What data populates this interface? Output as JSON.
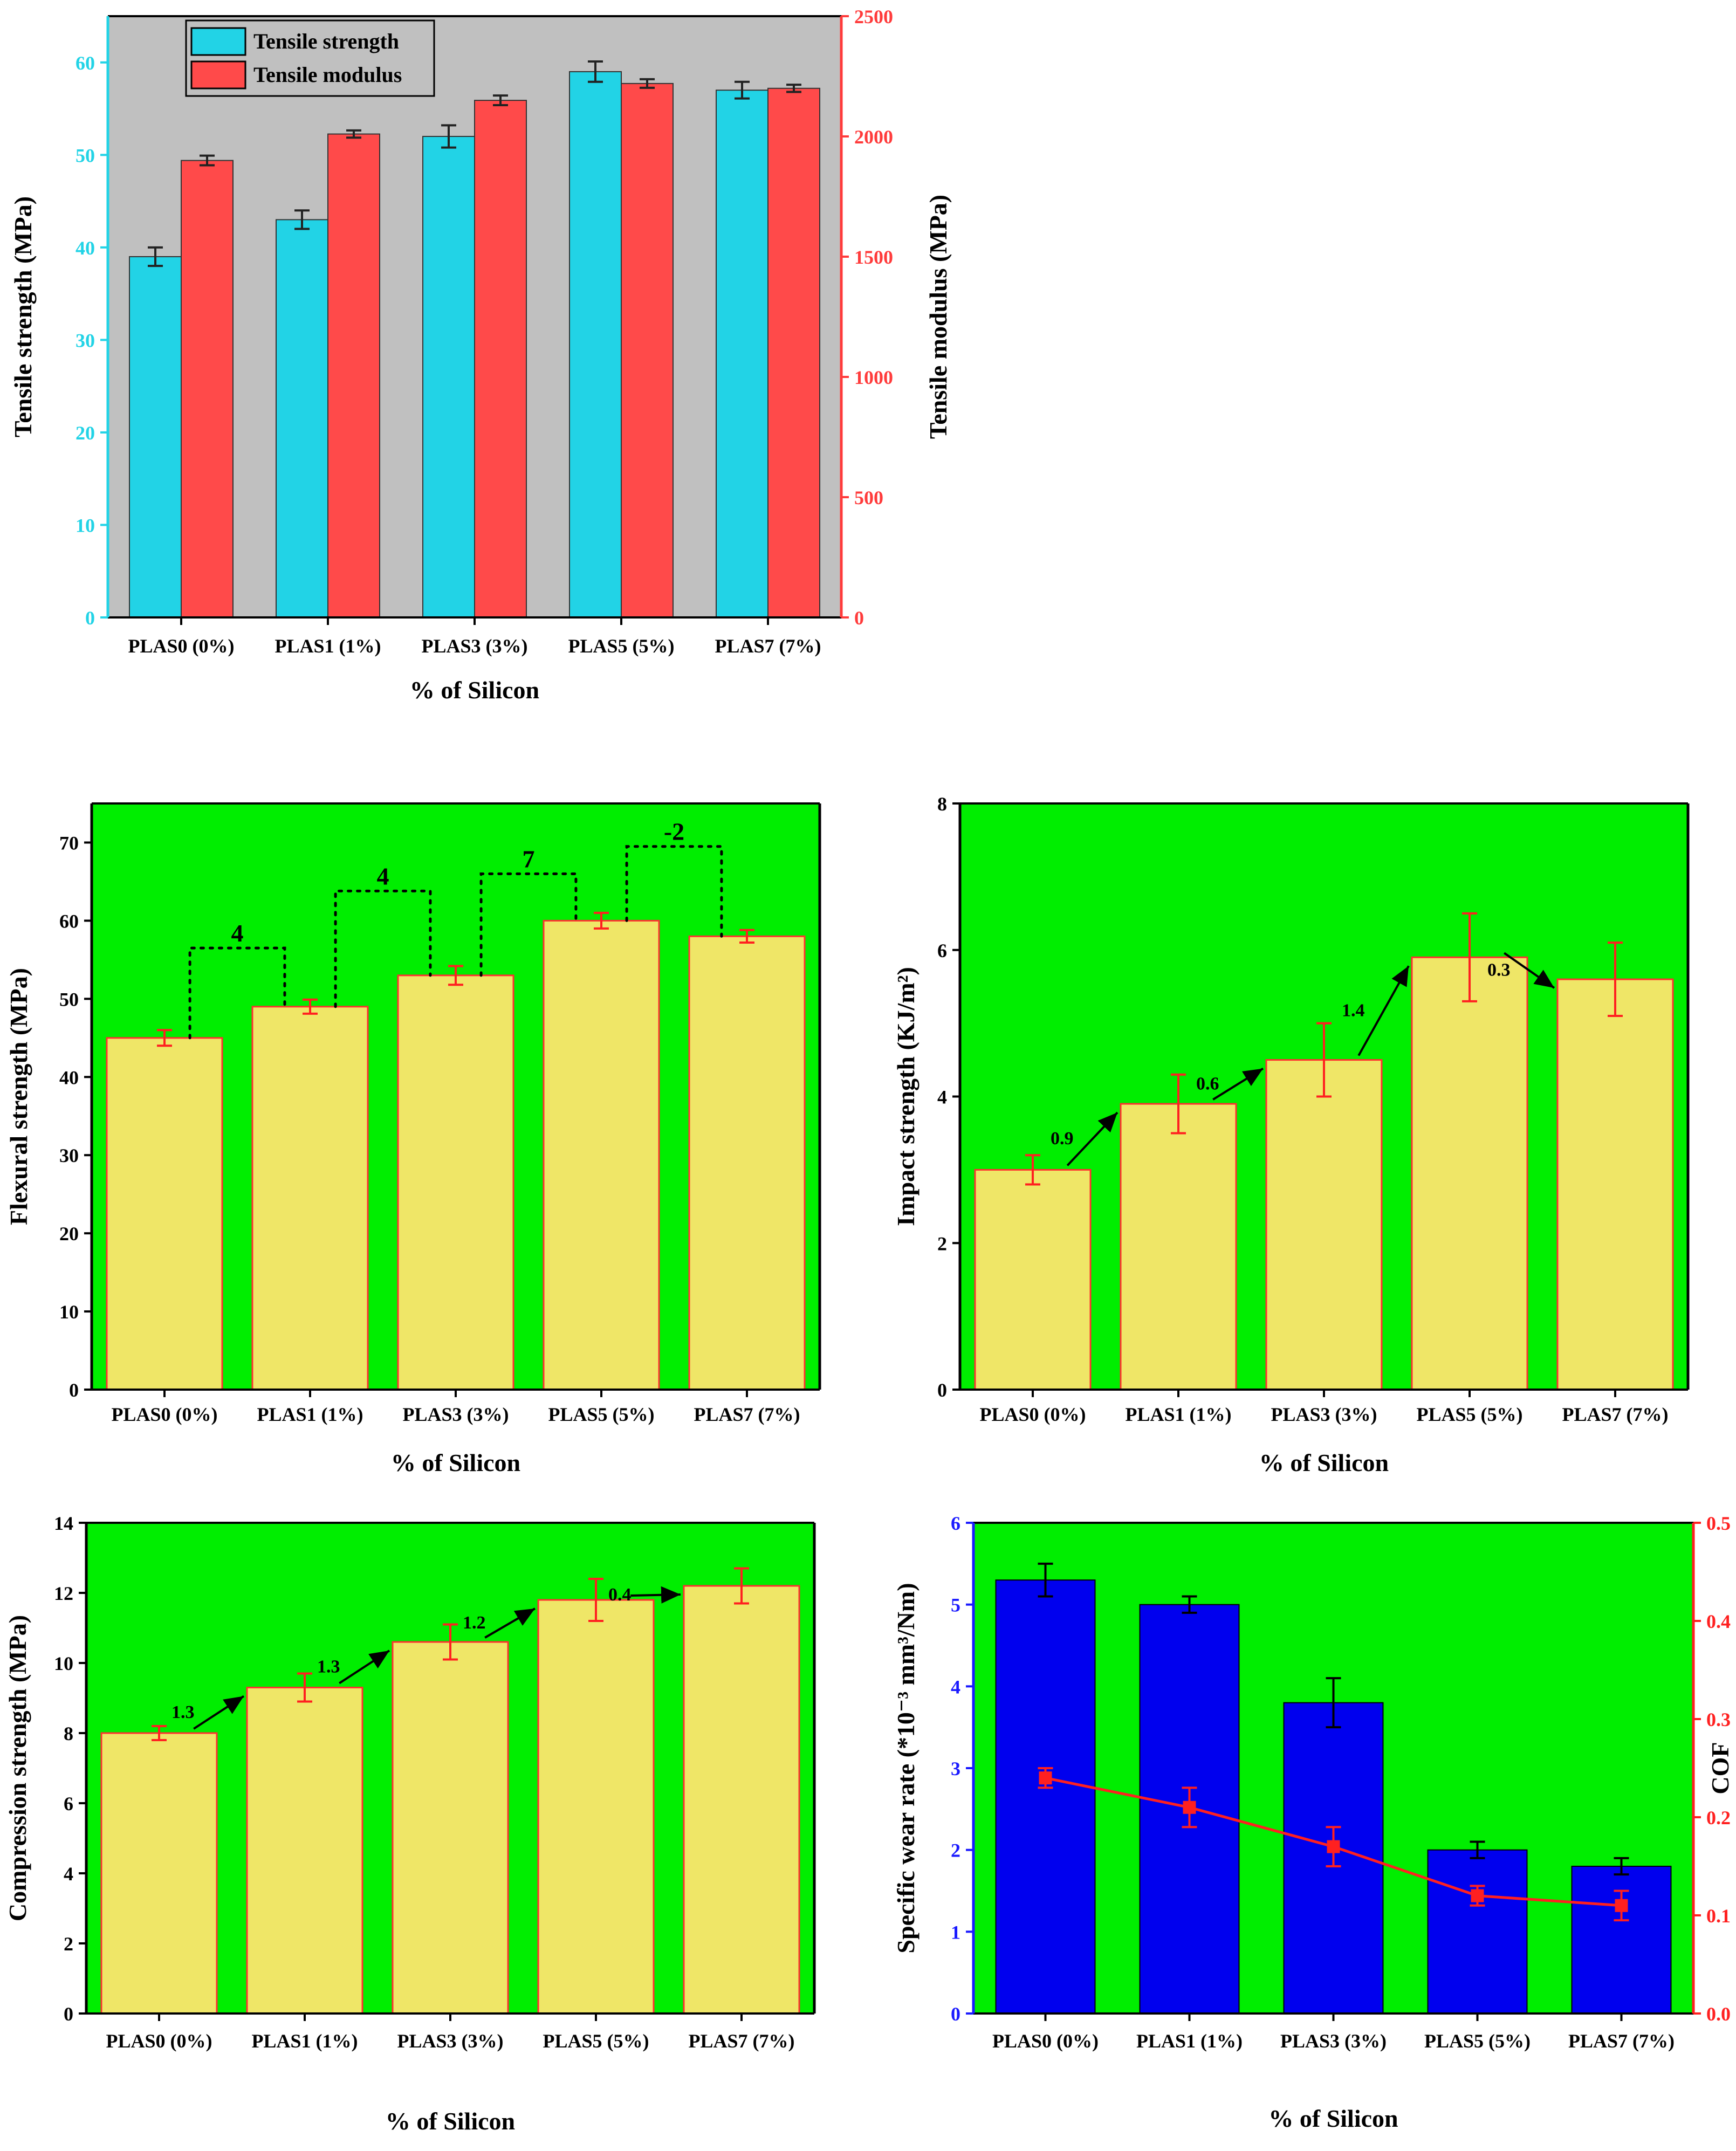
{
  "chart_data": [
    {
      "id": "tensile",
      "type": "bar",
      "categories": [
        "PLAS0 (0%)",
        "PLAS1 (1%)",
        "PLAS3 (3%)",
        "PLAS5 (5%)",
        "PLAS7 (7%)"
      ],
      "xlabel": "% of Silicon",
      "ylabel": "Tensile strength (MPa)",
      "ylabel_right": "Tensile modulus (MPa)",
      "ylim": [
        0,
        65
      ],
      "yticks": [
        0,
        10,
        20,
        30,
        40,
        50,
        60
      ],
      "ylim_right": [
        0,
        2500
      ],
      "yticks_right": [
        0,
        500,
        1000,
        1500,
        2000,
        2500
      ],
      "background": "#c0c0c0",
      "left_axis_color": "#22d3e6",
      "right_axis_color": "#ff3b3b",
      "legend_position": "top-left",
      "series": [
        {
          "name": "Tensile strength",
          "axis": "left",
          "color": "#22d3e6",
          "values": [
            39,
            43,
            52,
            59,
            57
          ],
          "errors": [
            1.0,
            1.0,
            1.2,
            1.1,
            0.9
          ]
        },
        {
          "name": "Tensile modulus",
          "axis": "right",
          "color": "#ff4a4a",
          "values": [
            1900,
            2010,
            2150,
            2220,
            2200
          ],
          "errors": [
            20,
            15,
            20,
            18,
            15
          ]
        }
      ]
    },
    {
      "id": "flexural",
      "type": "bar",
      "categories": [
        "PLAS0 (0%)",
        "PLAS1 (1%)",
        "PLAS3 (3%)",
        "PLAS5 (5%)",
        "PLAS7 (7%)"
      ],
      "xlabel": "% of Silicon",
      "ylabel": "Flexural strength (MPa)",
      "ylim": [
        0,
        75
      ],
      "yticks": [
        0,
        10,
        20,
        30,
        40,
        50,
        60,
        70
      ],
      "background": "#00ee00",
      "bar_color": "#efe667",
      "error_color": "#ff2020",
      "series": [
        {
          "name": "Flexural strength",
          "values": [
            45,
            49,
            53,
            60,
            58
          ],
          "errors": [
            1.0,
            0.9,
            1.2,
            1.0,
            0.8
          ]
        }
      ],
      "annotations": [
        {
          "label": "4",
          "from": 0,
          "to": 1,
          "level": 56.5
        },
        {
          "label": "4",
          "from": 1,
          "to": 2,
          "level": 63.8
        },
        {
          "label": "7",
          "from": 2,
          "to": 3,
          "level": 66.0
        },
        {
          "label": "-2",
          "from": 3,
          "to": 4,
          "level": 69.5
        }
      ]
    },
    {
      "id": "impact",
      "type": "bar",
      "categories": [
        "PLAS0 (0%)",
        "PLAS1 (1%)",
        "PLAS3 (3%)",
        "PLAS5 (5%)",
        "PLAS7 (7%)"
      ],
      "xlabel": "% of Silicon",
      "ylabel": "Impact strength (KJ/m²)",
      "ylim": [
        0,
        8
      ],
      "yticks": [
        0,
        2,
        4,
        6,
        8
      ],
      "background": "#00ee00",
      "bar_color": "#efe667",
      "error_color": "#ff2020",
      "series": [
        {
          "name": "Impact strength",
          "values": [
            3.0,
            3.9,
            4.5,
            5.9,
            5.6
          ],
          "errors": [
            0.2,
            0.4,
            0.5,
            0.6,
            0.5
          ]
        }
      ],
      "annotations": [
        {
          "label": "0.9",
          "from": 0,
          "to": 1
        },
        {
          "label": "0.6",
          "from": 1,
          "to": 2
        },
        {
          "label": "1.4",
          "from": 2,
          "to": 3
        },
        {
          "label": "0.3",
          "from": 3,
          "to": 4
        }
      ]
    },
    {
      "id": "compression",
      "type": "bar",
      "categories": [
        "PLAS0 (0%)",
        "PLAS1 (1%)",
        "PLAS3 (3%)",
        "PLAS5 (5%)",
        "PLAS7 (7%)"
      ],
      "xlabel": "% of Silicon",
      "ylabel": "Compression strength (MPa)",
      "ylim": [
        0,
        14
      ],
      "yticks": [
        0,
        2,
        4,
        6,
        8,
        10,
        12,
        14
      ],
      "background": "#00ee00",
      "bar_color": "#efe667",
      "error_color": "#ff2020",
      "series": [
        {
          "name": "Compression strength",
          "values": [
            8.0,
            9.3,
            10.6,
            11.8,
            12.2
          ],
          "errors": [
            0.2,
            0.4,
            0.5,
            0.6,
            0.5
          ]
        }
      ],
      "annotations": [
        {
          "label": "1.3",
          "from": 0,
          "to": 1
        },
        {
          "label": "1.3",
          "from": 1,
          "to": 2
        },
        {
          "label": "1.2",
          "from": 2,
          "to": 3
        },
        {
          "label": "0.4",
          "from": 3,
          "to": 4
        }
      ]
    },
    {
      "id": "wear",
      "type": "bar",
      "categories": [
        "PLAS0 (0%)",
        "PLAS1 (1%)",
        "PLAS3 (3%)",
        "PLAS5 (5%)",
        "PLAS7 (7%)"
      ],
      "xlabel": "% of Silicon",
      "ylabel": "Specific wear rate (*10⁻³ mm³/Nm)",
      "ylabel_right": "COF",
      "ylim": [
        0,
        6
      ],
      "yticks": [
        0,
        1,
        2,
        3,
        4,
        5,
        6
      ],
      "ylim_right": [
        0,
        0.5
      ],
      "yticks_right": [
        "0.0",
        "0.1",
        "0.2",
        "0.3",
        "0.4",
        "0.5"
      ],
      "background": "#00ee00",
      "left_axis_color": "#1a1aff",
      "right_axis_color": "#ff2020",
      "series": [
        {
          "name": "Specific wear rate",
          "type": "bar",
          "axis": "left",
          "color": "#0000ee",
          "values": [
            5.3,
            5.0,
            3.8,
            2.0,
            1.8
          ],
          "errors": [
            0.2,
            0.1,
            0.3,
            0.1,
            0.1
          ]
        },
        {
          "name": "COF",
          "type": "line",
          "axis": "right",
          "color": "#ff2020",
          "values": [
            0.24,
            0.21,
            0.17,
            0.12,
            0.11
          ],
          "errors": [
            0.01,
            0.02,
            0.02,
            0.01,
            0.015
          ]
        }
      ]
    }
  ]
}
